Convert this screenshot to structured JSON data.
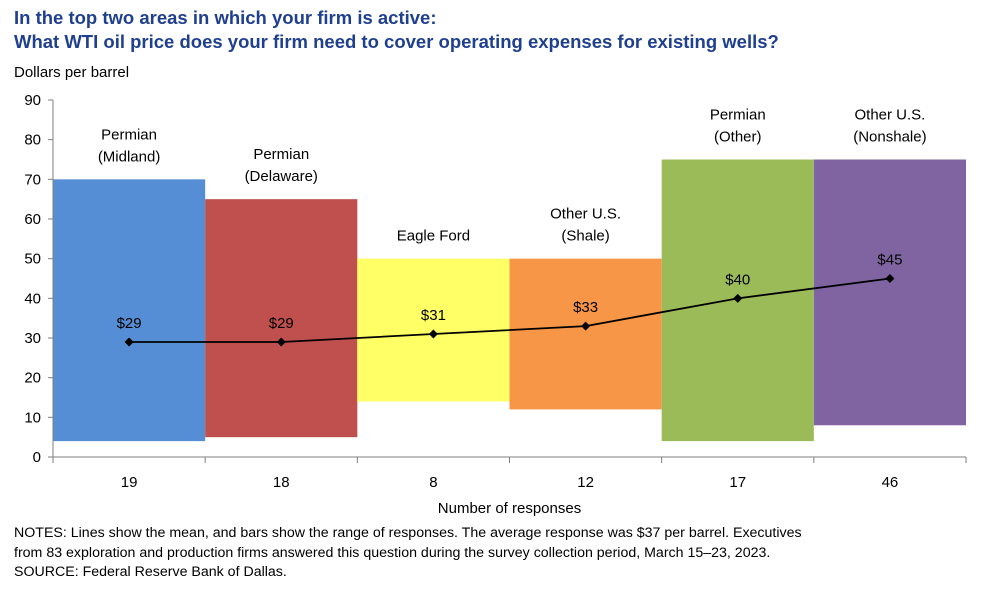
{
  "title": {
    "line1": "In the top two areas in which your firm is active:",
    "line2": "What WTI oil price does your firm need to cover operating expenses for existing wells?"
  },
  "chart_data": {
    "type": "bar",
    "title": "In the top two areas in which your firm is active: What WTI oil price does your firm need to cover operating expenses for existing wells?",
    "ylabel": "Dollars per barrel",
    "xlabel": "Number of responses",
    "ylim": [
      0,
      90
    ],
    "yticks": [
      0,
      10,
      20,
      30,
      40,
      50,
      60,
      70,
      80,
      90
    ],
    "categories": [
      {
        "name": [
          "Permian",
          "(Midland)"
        ],
        "responses": "19",
        "low": 4,
        "high": 70,
        "mean": 29,
        "mean_label": "$29",
        "color": "#558ed5"
      },
      {
        "name": [
          "Permian",
          "(Delaware)"
        ],
        "responses": "18",
        "low": 5,
        "high": 65,
        "mean": 29,
        "mean_label": "$29",
        "color": "#c0504d"
      },
      {
        "name": [
          "Eagle Ford"
        ],
        "responses": "8",
        "low": 14,
        "high": 50,
        "mean": 31,
        "mean_label": "$31",
        "color": "#ffff66"
      },
      {
        "name": [
          "Other U.S.",
          "(Shale)"
        ],
        "responses": "12",
        "low": 12,
        "high": 50,
        "mean": 33,
        "mean_label": "$33",
        "color": "#f79646"
      },
      {
        "name": [
          "Permian",
          "(Other)"
        ],
        "responses": "17",
        "low": 4,
        "high": 75,
        "mean": 40,
        "mean_label": "$40",
        "color": "#9bbb59"
      },
      {
        "name": [
          "Other U.S.",
          "(Nonshale)"
        ],
        "responses": "46",
        "low": 8,
        "high": 75,
        "mean": 45,
        "mean_label": "$45",
        "color": "#8064a2"
      }
    ],
    "series": [
      {
        "name": "Mean",
        "type": "line",
        "values": [
          29,
          29,
          31,
          33,
          40,
          45
        ],
        "color": "#000000"
      }
    ]
  },
  "notes": {
    "line1": "NOTES: Lines show the mean, and bars show the range of responses. The average response was $37 per barrel. Executives",
    "line2": "from 83 exploration and production firms answered this question during the survey collection period, March 15–23, 2023.",
    "line3": "SOURCE: Federal Reserve Bank of Dallas."
  }
}
